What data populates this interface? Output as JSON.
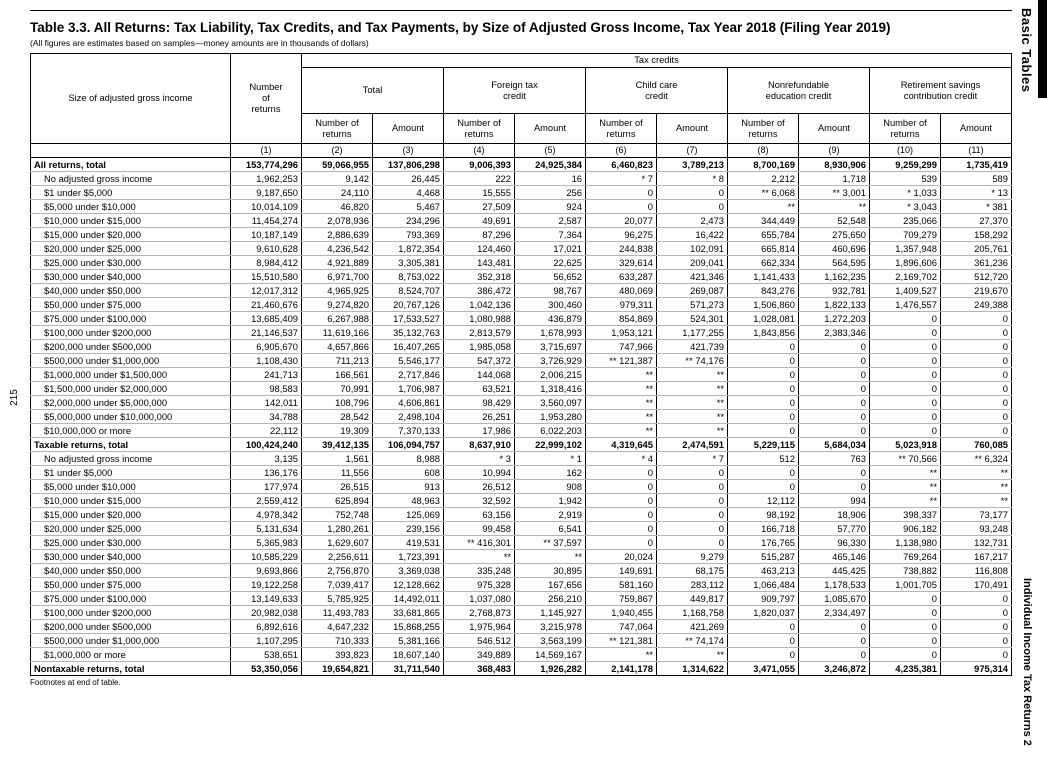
{
  "page": {
    "title": "Table 3.3.  All Returns: Tax Liability, Tax Credits, and Tax Payments, by Size of Adjusted Gross Income, Tax Year 2018 (Filing Year 2019)",
    "subtitle": "(All figures are estimates based on samples—money amounts are in thousands of dollars)",
    "footnote": "Footnotes at end of table.",
    "page_number": "215",
    "tab_top": "Basic Tables",
    "tab_bottom": "Individual Income Tax Returns 2"
  },
  "table": {
    "stub_header": "Size of adjusted gross income",
    "returns_header": "Number\nof\nreturns",
    "group_header": "Tax credits",
    "groups": [
      "Total",
      "Foreign tax\ncredit",
      "Child care\ncredit",
      "Nonrefundable\neducation credit",
      "Retirement savings\ncontribution credit"
    ],
    "subheader_returns": "Number of\nreturns",
    "subheader_amount": "Amount",
    "col_numbers": [
      "(1)",
      "(2)",
      "(3)",
      "(4)",
      "(5)",
      "(6)",
      "(7)",
      "(8)",
      "(9)",
      "(10)",
      "(11)"
    ],
    "rows": [
      {
        "label": "All returns, total",
        "bold": true,
        "values": [
          "153,774,296",
          "59,066,955",
          "137,806,298",
          "9,006,393",
          "24,925,384",
          "6,460,823",
          "3,789,213",
          "8,700,169",
          "8,930,906",
          "9,259,299",
          "1,735,419"
        ]
      },
      {
        "label": "No adjusted gross income",
        "bold": false,
        "values": [
          "1,962,253",
          "9,142",
          "26,445",
          "222",
          "16",
          "* 7",
          "* 8",
          "2,212",
          "1,718",
          "539",
          "589"
        ]
      },
      {
        "label": "$1 under $5,000",
        "bold": false,
        "values": [
          "9,187,650",
          "24,110",
          "4,468",
          "15,555",
          "256",
          "0",
          "0",
          "** 6,068",
          "** 3,001",
          "* 1,033",
          "* 13"
        ]
      },
      {
        "label": "$5,000 under $10,000",
        "bold": false,
        "values": [
          "10,014,109",
          "46,820",
          "5,467",
          "27,509",
          "924",
          "0",
          "0",
          "**",
          "**",
          "* 3,043",
          "* 381"
        ]
      },
      {
        "label": "$10,000 under $15,000",
        "bold": false,
        "values": [
          "11,454,274",
          "2,078,936",
          "234,296",
          "49,691",
          "2,587",
          "20,077",
          "2,473",
          "344,449",
          "52,548",
          "235,066",
          "27,370"
        ]
      },
      {
        "label": "$15,000 under $20,000",
        "bold": false,
        "values": [
          "10,187,149",
          "2,886,639",
          "793,369",
          "87,296",
          "7,364",
          "96,275",
          "16,422",
          "655,784",
          "275,650",
          "709,279",
          "158,292"
        ]
      },
      {
        "label": "$20,000 under $25,000",
        "bold": false,
        "values": [
          "9,610,628",
          "4,236,542",
          "1,872,354",
          "124,460",
          "17,021",
          "244,838",
          "102,091",
          "665,814",
          "460,696",
          "1,357,948",
          "205,761"
        ]
      },
      {
        "label": "$25,000 under $30,000",
        "bold": false,
        "values": [
          "8,984,412",
          "4,921,889",
          "3,305,381",
          "143,481",
          "22,625",
          "329,614",
          "209,041",
          "662,334",
          "564,595",
          "1,896,606",
          "361,236"
        ]
      },
      {
        "label": "$30,000 under $40,000",
        "bold": false,
        "values": [
          "15,510,580",
          "6,971,700",
          "8,753,022",
          "352,318",
          "56,652",
          "633,287",
          "421,346",
          "1,141,433",
          "1,162,235",
          "2,169,702",
          "512,720"
        ]
      },
      {
        "label": "$40,000 under $50,000",
        "bold": false,
        "values": [
          "12,017,312",
          "4,965,925",
          "8,524,707",
          "386,472",
          "98,767",
          "480,069",
          "269,087",
          "843,276",
          "932,781",
          "1,409,527",
          "219,670"
        ]
      },
      {
        "label": "$50,000 under $75,000",
        "bold": false,
        "values": [
          "21,460,676",
          "9,274,820",
          "20,767,126",
          "1,042,136",
          "300,460",
          "979,311",
          "571,273",
          "1,506,860",
          "1,822,133",
          "1,476,557",
          "249,388"
        ]
      },
      {
        "label": "$75,000 under $100,000",
        "bold": false,
        "values": [
          "13,685,409",
          "6,267,988",
          "17,533,527",
          "1,080,988",
          "436,879",
          "854,869",
          "524,301",
          "1,028,081",
          "1,272,203",
          "0",
          "0"
        ]
      },
      {
        "label": "$100,000 under $200,000",
        "bold": false,
        "values": [
          "21,146,537",
          "11,619,166",
          "35,132,763",
          "2,813,579",
          "1,678,993",
          "1,953,121",
          "1,177,255",
          "1,843,856",
          "2,383,346",
          "0",
          "0"
        ]
      },
      {
        "label": "$200,000 under $500,000",
        "bold": false,
        "values": [
          "6,905,670",
          "4,657,866",
          "16,407,265",
          "1,985,058",
          "3,715,697",
          "747,966",
          "421,739",
          "0",
          "0",
          "0",
          "0"
        ]
      },
      {
        "label": "$500,000 under $1,000,000",
        "bold": false,
        "values": [
          "1,108,430",
          "711,213",
          "5,546,177",
          "547,372",
          "3,726,929",
          "** 121,387",
          "** 74,176",
          "0",
          "0",
          "0",
          "0"
        ]
      },
      {
        "label": "$1,000,000 under $1,500,000",
        "bold": false,
        "values": [
          "241,713",
          "166,561",
          "2,717,846",
          "144,068",
          "2,006,215",
          "**",
          "**",
          "0",
          "0",
          "0",
          "0"
        ]
      },
      {
        "label": "$1,500,000 under $2,000,000",
        "bold": false,
        "values": [
          "98,583",
          "70,991",
          "1,706,987",
          "63,521",
          "1,318,416",
          "**",
          "**",
          "0",
          "0",
          "0",
          "0"
        ]
      },
      {
        "label": "$2,000,000 under $5,000,000",
        "bold": false,
        "values": [
          "142,011",
          "108,796",
          "4,606,861",
          "98,429",
          "3,560,097",
          "**",
          "**",
          "0",
          "0",
          "0",
          "0"
        ]
      },
      {
        "label": "$5,000,000 under $10,000,000",
        "bold": false,
        "values": [
          "34,788",
          "28,542",
          "2,498,104",
          "26,251",
          "1,953,280",
          "**",
          "**",
          "0",
          "0",
          "0",
          "0"
        ]
      },
      {
        "label": "$10,000,000 or more",
        "bold": false,
        "values": [
          "22,112",
          "19,309",
          "7,370,133",
          "17,986",
          "6,022,203",
          "**",
          "**",
          "0",
          "0",
          "0",
          "0"
        ]
      },
      {
        "label": "Taxable returns, total",
        "bold": true,
        "values": [
          "100,424,240",
          "39,412,135",
          "106,094,757",
          "8,637,910",
          "22,999,102",
          "4,319,645",
          "2,474,591",
          "5,229,115",
          "5,684,034",
          "5,023,918",
          "760,085"
        ]
      },
      {
        "label": "No adjusted gross income",
        "bold": false,
        "values": [
          "3,135",
          "1,561",
          "8,988",
          "* 3",
          "* 1",
          "* 4",
          "* 7",
          "512",
          "763",
          "** 70,566",
          "** 6,324"
        ]
      },
      {
        "label": "$1 under $5,000",
        "bold": false,
        "values": [
          "136,176",
          "11,556",
          "608",
          "10,994",
          "162",
          "0",
          "0",
          "0",
          "0",
          "**",
          "**"
        ]
      },
      {
        "label": "$5,000 under $10,000",
        "bold": false,
        "values": [
          "177,974",
          "26,515",
          "913",
          "26,512",
          "908",
          "0",
          "0",
          "0",
          "0",
          "**",
          "**"
        ]
      },
      {
        "label": "$10,000 under $15,000",
        "bold": false,
        "values": [
          "2,559,412",
          "625,894",
          "48,963",
          "32,592",
          "1,942",
          "0",
          "0",
          "12,112",
          "994",
          "**",
          "**"
        ]
      },
      {
        "label": "$15,000 under $20,000",
        "bold": false,
        "values": [
          "4,978,342",
          "752,748",
          "125,069",
          "63,156",
          "2,919",
          "0",
          "0",
          "98,192",
          "18,906",
          "398,337",
          "73,177"
        ]
      },
      {
        "label": "$20,000 under $25,000",
        "bold": false,
        "values": [
          "5,131,634",
          "1,280,261",
          "239,156",
          "99,458",
          "6,541",
          "0",
          "0",
          "166,718",
          "57,770",
          "906,182",
          "93,248"
        ]
      },
      {
        "label": "$25,000 under $30,000",
        "bold": false,
        "values": [
          "5,365,983",
          "1,629,607",
          "419,531",
          "** 416,301",
          "** 37,597",
          "0",
          "0",
          "176,765",
          "96,330",
          "1,138,980",
          "132,731"
        ]
      },
      {
        "label": "$30,000 under $40,000",
        "bold": false,
        "values": [
          "10,585,229",
          "2,256,611",
          "1,723,391",
          "**",
          "**",
          "20,024",
          "9,279",
          "515,287",
          "465,146",
          "769,264",
          "167,217"
        ]
      },
      {
        "label": "$40,000 under $50,000",
        "bold": false,
        "values": [
          "9,693,866",
          "2,756,870",
          "3,369,038",
          "335,248",
          "30,895",
          "149,691",
          "68,175",
          "463,213",
          "445,425",
          "738,882",
          "116,808"
        ]
      },
      {
        "label": "$50,000 under $75,000",
        "bold": false,
        "values": [
          "19,122,258",
          "7,039,417",
          "12,128,662",
          "975,328",
          "167,656",
          "581,160",
          "283,112",
          "1,066,484",
          "1,178,533",
          "1,001,705",
          "170,491"
        ]
      },
      {
        "label": "$75,000 under $100,000",
        "bold": false,
        "values": [
          "13,149,633",
          "5,785,925",
          "14,492,011",
          "1,037,080",
          "256,210",
          "759,867",
          "449,817",
          "909,797",
          "1,085,670",
          "0",
          "0"
        ]
      },
      {
        "label": "$100,000 under $200,000",
        "bold": false,
        "values": [
          "20,982,038",
          "11,493,783",
          "33,681,865",
          "2,768,873",
          "1,145,927",
          "1,940,455",
          "1,168,758",
          "1,820,037",
          "2,334,497",
          "0",
          "0"
        ]
      },
      {
        "label": "$200,000 under $500,000",
        "bold": false,
        "values": [
          "6,892,616",
          "4,647,232",
          "15,868,255",
          "1,975,964",
          "3,215,978",
          "747,064",
          "421,269",
          "0",
          "0",
          "0",
          "0"
        ]
      },
      {
        "label": "$500,000 under $1,000,000",
        "bold": false,
        "values": [
          "1,107,295",
          "710,333",
          "5,381,166",
          "546,512",
          "3,563,199",
          "** 121,381",
          "** 74,174",
          "0",
          "0",
          "0",
          "0"
        ]
      },
      {
        "label": "$1,000,000 or more",
        "bold": false,
        "values": [
          "538,651",
          "393,823",
          "18,607,140",
          "349,889",
          "14,569,167",
          "**",
          "**",
          "0",
          "0",
          "0",
          "0"
        ]
      },
      {
        "label": "Nontaxable returns, total",
        "bold": true,
        "values": [
          "53,350,056",
          "19,654,821",
          "31,711,540",
          "368,483",
          "1,926,282",
          "2,141,178",
          "1,314,622",
          "3,471,055",
          "3,246,872",
          "4,235,381",
          "975,314"
        ]
      }
    ]
  }
}
